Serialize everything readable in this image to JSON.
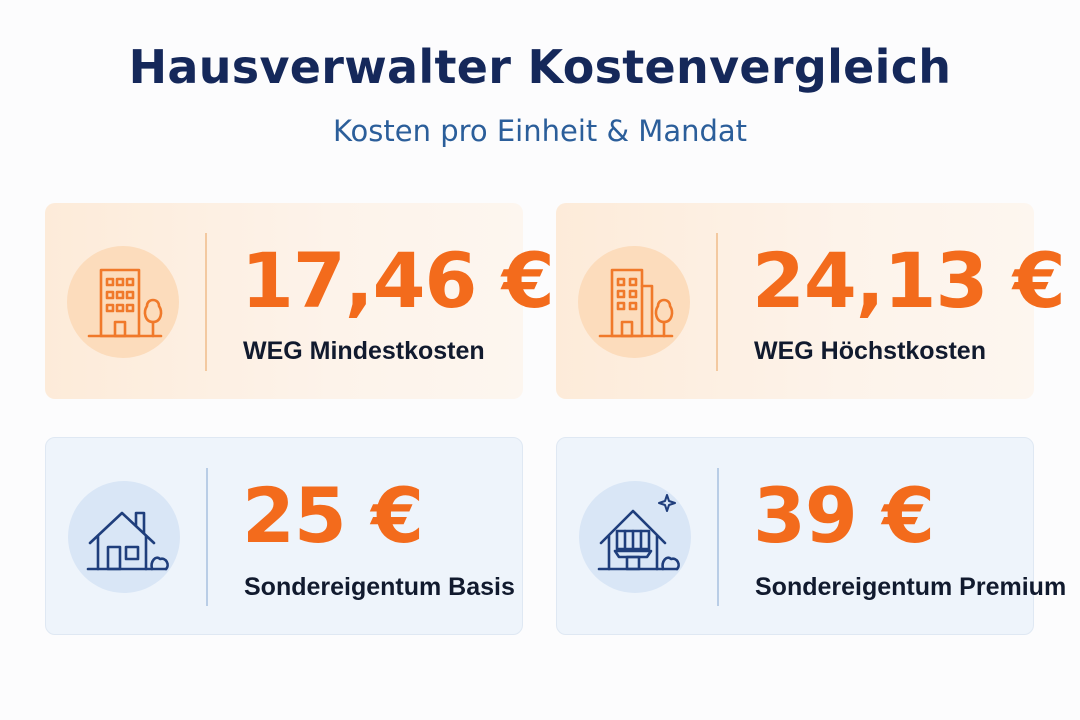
{
  "header": {
    "title": "Hausverwalter Kostenvergleich",
    "subtitle": "Kosten pro Einheit & Mandat"
  },
  "cards": [
    {
      "value": "17,46 €",
      "label": "WEG Mindestkosten",
      "icon": "apartment-building-tree-icon"
    },
    {
      "value": "24,13 €",
      "label": "WEG Höchstkosten",
      "icon": "apartment-building-tree-icon"
    },
    {
      "value": "25 €",
      "label": "Sondereigentum Basis",
      "icon": "house-icon"
    },
    {
      "value": "39 €",
      "label": "Sondereigentum Premium",
      "icon": "house-sparkle-icon"
    }
  ],
  "colors": {
    "accent": "#f36b1c",
    "title": "#15285a",
    "subtitle": "#2b5e9a",
    "warm_card": "#fdefe2",
    "cool_card": "#eef4fb"
  }
}
